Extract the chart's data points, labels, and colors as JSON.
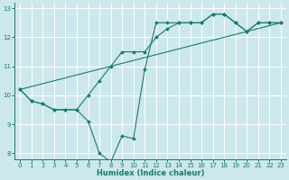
{
  "xlabel": "Humidex (Indice chaleur)",
  "bg_color": "#cce8ec",
  "grid_color": "#ffffff",
  "line_color": "#1a7a6e",
  "xlim": [
    -0.5,
    23.5
  ],
  "ylim": [
    7.8,
    13.2
  ],
  "yticks": [
    8,
    9,
    10,
    11,
    12,
    13
  ],
  "xticks": [
    0,
    1,
    2,
    3,
    4,
    5,
    6,
    7,
    8,
    9,
    10,
    11,
    12,
    13,
    14,
    15,
    16,
    17,
    18,
    19,
    20,
    21,
    22,
    23
  ],
  "line1_x": [
    0,
    1,
    2,
    3,
    4,
    5,
    6,
    7,
    8,
    9,
    10,
    11,
    12,
    13,
    14,
    15,
    16,
    17,
    18,
    19,
    20,
    21,
    22,
    23
  ],
  "line1_y": [
    10.2,
    9.8,
    9.7,
    9.5,
    9.5,
    9.5,
    9.1,
    8.0,
    7.7,
    8.6,
    8.5,
    10.9,
    12.5,
    12.5,
    12.5,
    12.5,
    12.5,
    12.8,
    12.8,
    12.5,
    12.2,
    12.5,
    12.5,
    12.5
  ],
  "line2_x": [
    0,
    1,
    2,
    3,
    4,
    5,
    6,
    7,
    8,
    9,
    10,
    11,
    12,
    13,
    14,
    15,
    16,
    17,
    18,
    19,
    20,
    21,
    22,
    23
  ],
  "line2_y": [
    10.2,
    9.8,
    9.7,
    9.5,
    9.5,
    9.5,
    10.0,
    10.5,
    11.0,
    11.5,
    11.5,
    11.5,
    12.0,
    12.3,
    12.5,
    12.5,
    12.5,
    12.8,
    12.8,
    12.5,
    12.2,
    12.5,
    12.5,
    12.5
  ],
  "line3_x": [
    0,
    23
  ],
  "line3_y": [
    10.2,
    12.5
  ]
}
